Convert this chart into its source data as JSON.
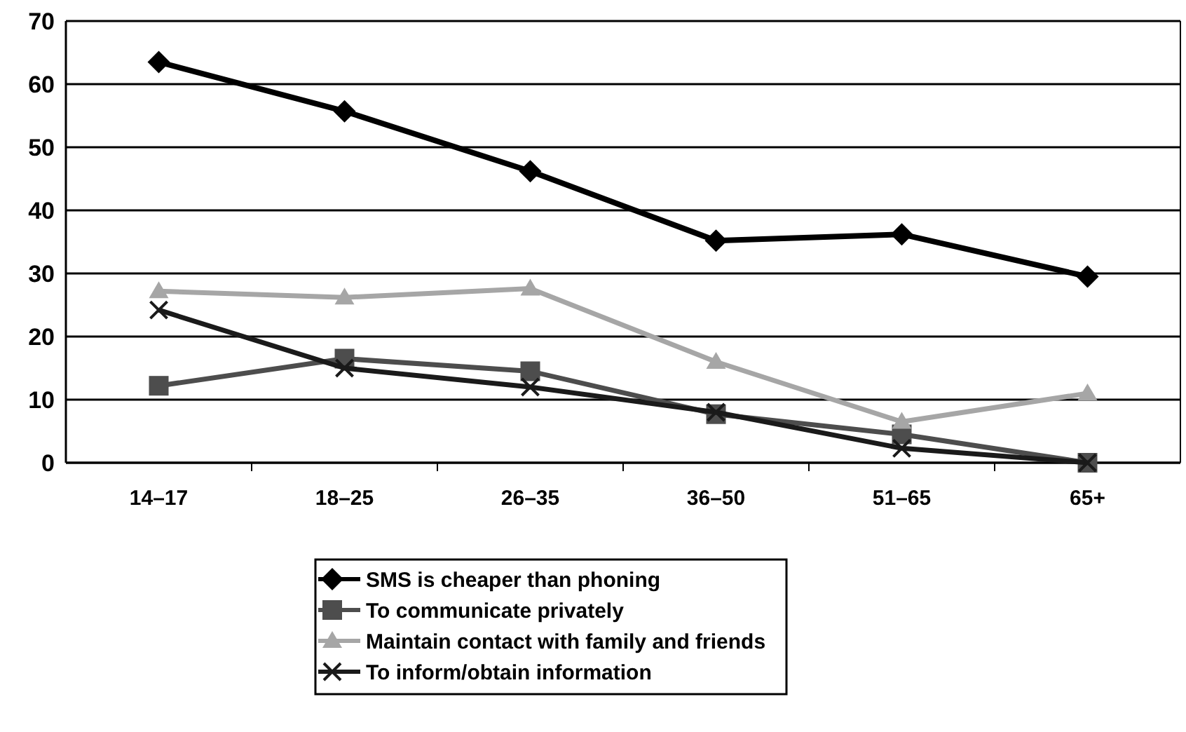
{
  "chart_data": {
    "type": "line",
    "categories": [
      "14–17",
      "18–25",
      "26–35",
      "36–50",
      "51–65",
      "65+"
    ],
    "series": [
      {
        "name": "SMS is cheaper than phoning",
        "color": "#000000",
        "marker": "diamond",
        "values": [
          63.5,
          55.7,
          46.2,
          35.2,
          36.2,
          29.5
        ]
      },
      {
        "name": "To communicate privately",
        "color": "#4d4d4d",
        "marker": "square",
        "values": [
          12.2,
          16.5,
          14.5,
          7.7,
          4.5,
          0
        ]
      },
      {
        "name": "Maintain contact with family and friends",
        "color": "#a6a6a6",
        "marker": "triangle",
        "values": [
          27.2,
          26.2,
          27.6,
          16,
          6.5,
          11
        ]
      },
      {
        "name": "To inform/obtain information",
        "color": "#1a1a1a",
        "marker": "cross",
        "values": [
          24.2,
          15,
          12,
          8,
          2.3,
          0
        ]
      }
    ],
    "ylim": [
      0,
      70
    ],
    "yticks": [
      0,
      10,
      20,
      30,
      40,
      50,
      60,
      70
    ],
    "grid": "y",
    "legend": "bottom"
  }
}
